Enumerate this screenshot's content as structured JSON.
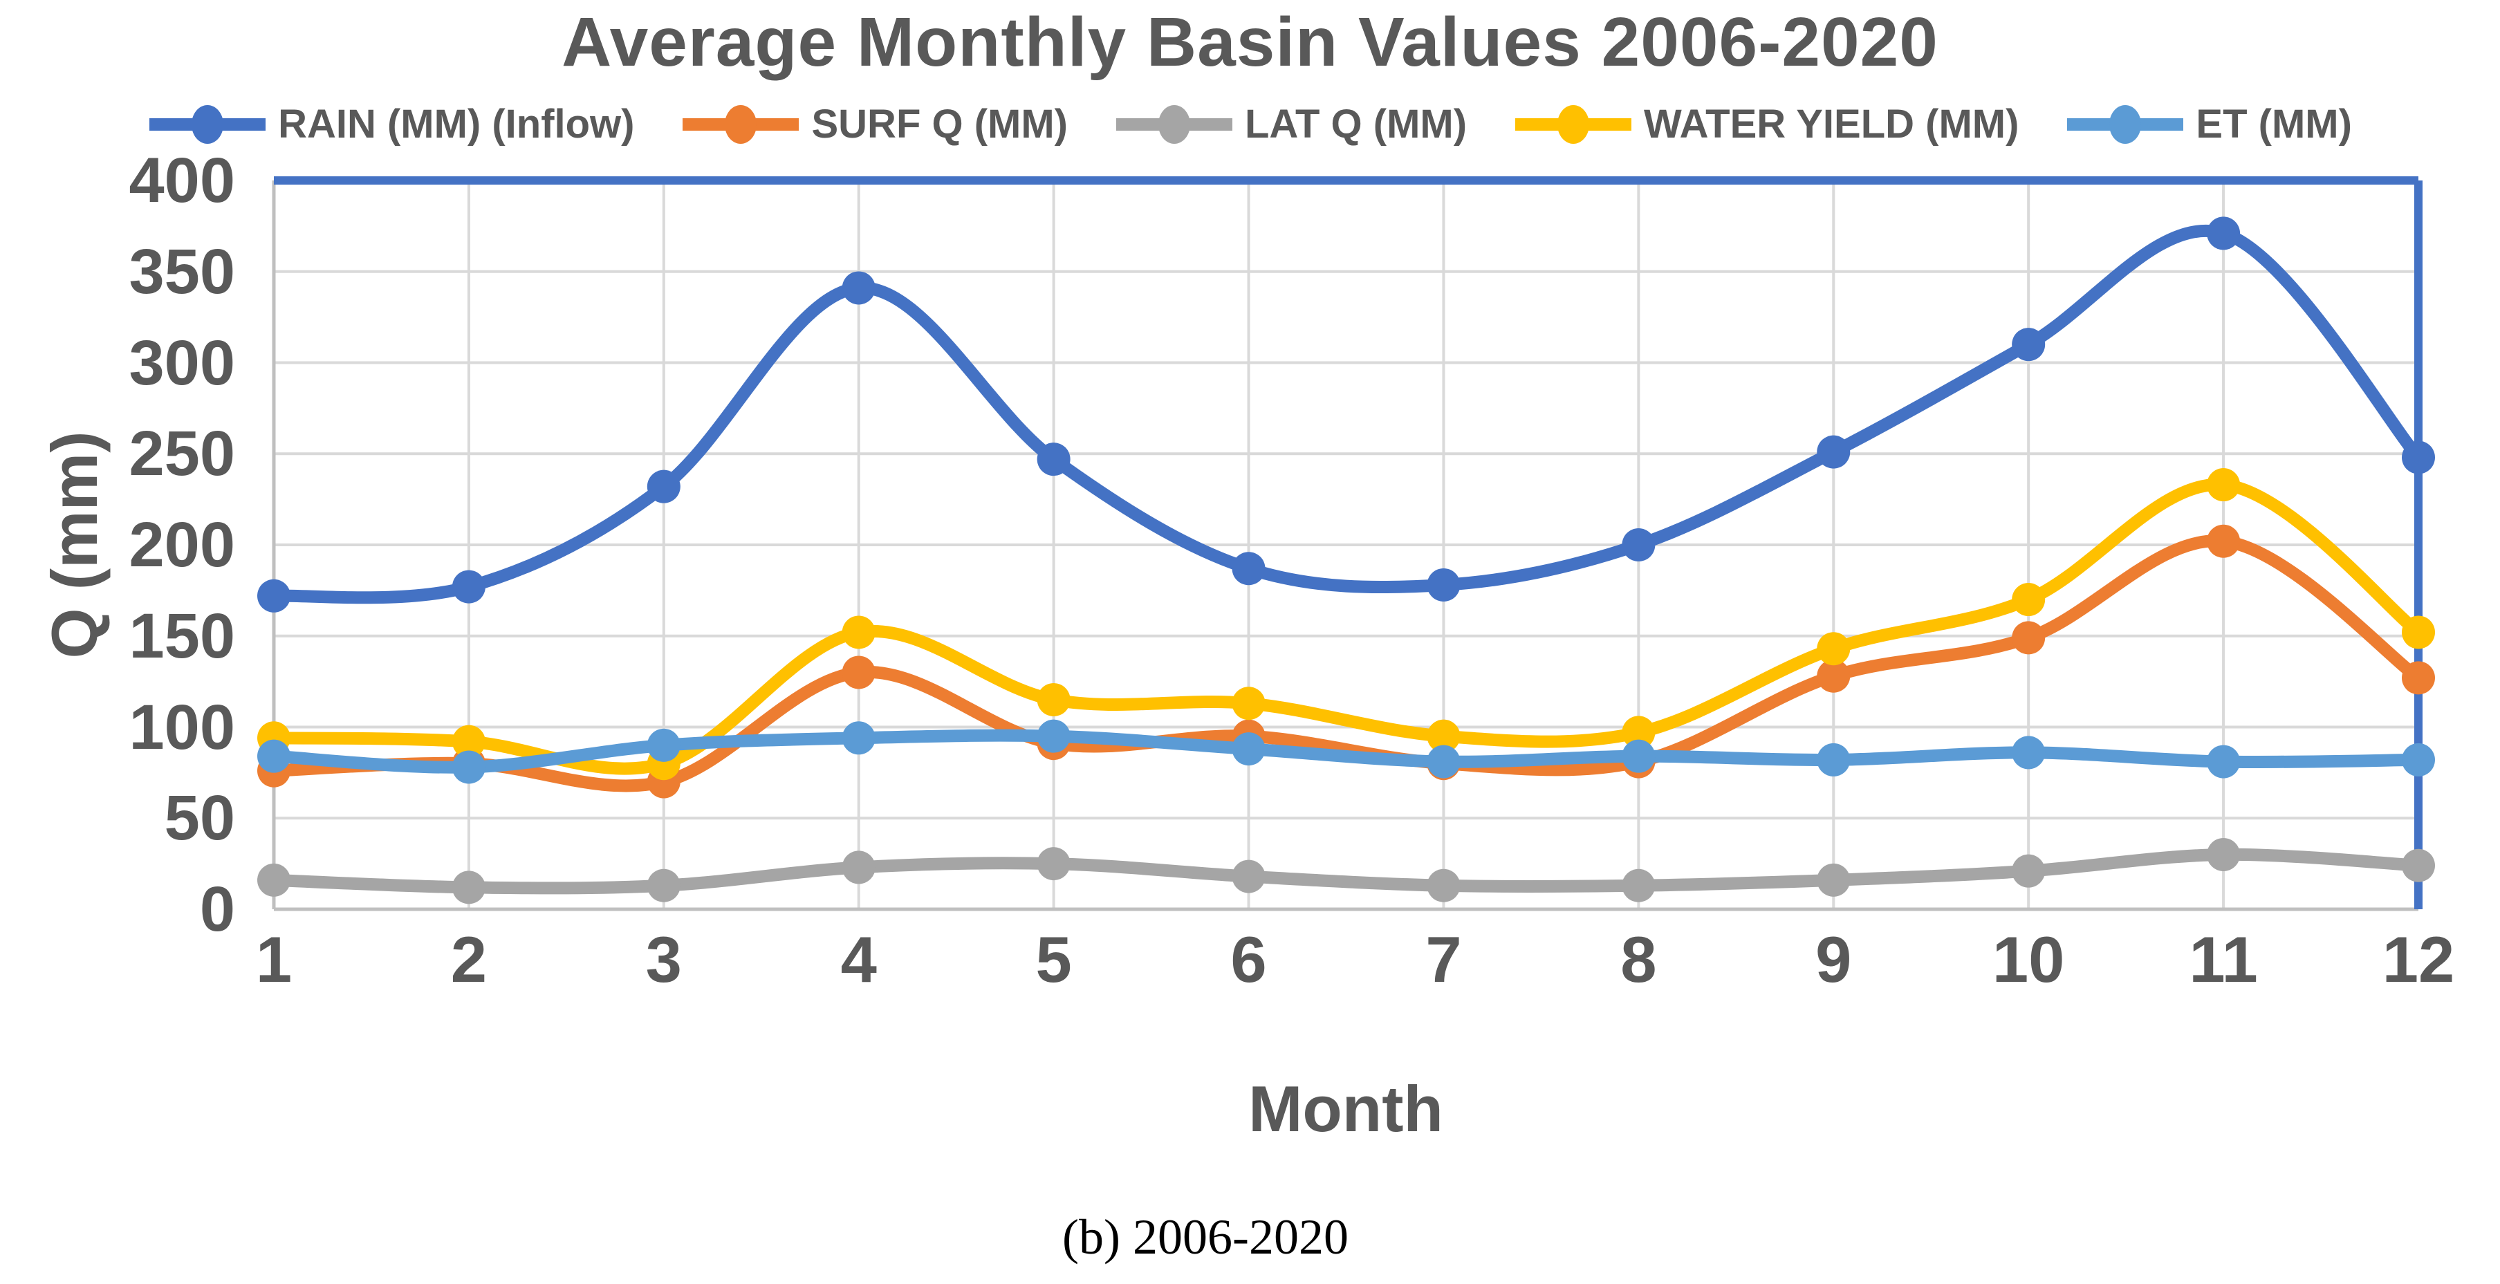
{
  "chart_data": {
    "type": "line",
    "title": "Average Monthly Basin Values 2006-2020",
    "xlabel": "Month",
    "ylabel": "Q (mm)",
    "caption": "(b) 2006-2020",
    "x": [
      1,
      2,
      3,
      4,
      5,
      6,
      7,
      8,
      9,
      10,
      11,
      12
    ],
    "ylim": [
      0,
      400
    ],
    "yticks": [
      0,
      50,
      100,
      150,
      200,
      250,
      300,
      350,
      400
    ],
    "grid": true,
    "legend_position": "top",
    "line_style": "smooth",
    "marker": "circle",
    "colors": {
      "text": "#595959",
      "gridline": "#D9D9D9",
      "axis_gray": "#BFBFBF",
      "border_blue": "#4472C4",
      "background": "#FFFFFF"
    },
    "series": [
      {
        "name": "RAIN (MM) (Inflow)",
        "color": "#4472C4",
        "values": [
          172,
          177,
          232,
          341,
          247,
          187,
          178,
          200,
          251,
          310,
          371,
          248
        ]
      },
      {
        "name": "SURF Q (MM)",
        "color": "#ED7D31",
        "values": [
          76,
          80,
          70,
          130,
          91,
          95,
          80,
          81,
          128,
          149,
          202,
          127
        ]
      },
      {
        "name": "LAT Q (MM)",
        "color": "#A5A5A5",
        "values": [
          16,
          12,
          13,
          23,
          25,
          18,
          13,
          13,
          16,
          21,
          30,
          24
        ]
      },
      {
        "name": "WATER YIELD (MM)",
        "color": "#FFC000",
        "values": [
          94,
          92,
          80,
          152,
          115,
          113,
          95,
          97,
          143,
          170,
          233,
          152
        ]
      },
      {
        "name": "ET (MM)",
        "color": "#5B9BD5",
        "values": [
          84,
          78,
          90,
          94,
          95,
          88,
          81,
          84,
          82,
          86,
          81,
          82
        ]
      }
    ]
  }
}
